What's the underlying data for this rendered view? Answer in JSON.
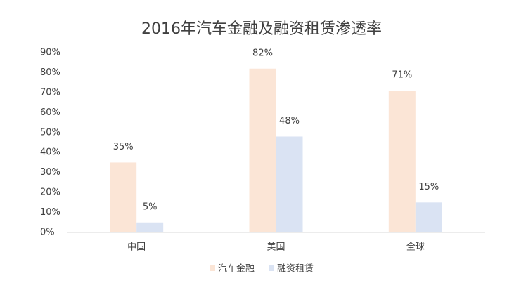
{
  "chart_data": {
    "type": "bar",
    "title": "2016年汽车金融及融资租赁渗透率",
    "categories": [
      "中国",
      "美国",
      "全球"
    ],
    "series": [
      {
        "name": "汽车金融",
        "color": "#fbe5d6",
        "values": [
          35,
          82,
          71
        ],
        "value_labels": [
          "35%",
          "82%",
          "71%"
        ]
      },
      {
        "name": "融资租赁",
        "color": "#dae3f3",
        "values": [
          5,
          48,
          15
        ],
        "value_labels": [
          "5%",
          "48%",
          "15%"
        ]
      }
    ],
    "ylim": [
      0,
      90
    ],
    "yticks": [
      {
        "value": 0,
        "label": "0%"
      },
      {
        "value": 10,
        "label": "10%"
      },
      {
        "value": 20,
        "label": "20%"
      },
      {
        "value": 30,
        "label": "30%"
      },
      {
        "value": 40,
        "label": "40%"
      },
      {
        "value": 50,
        "label": "50%"
      },
      {
        "value": 60,
        "label": "60%"
      },
      {
        "value": 70,
        "label": "70%"
      },
      {
        "value": 80,
        "label": "80%"
      },
      {
        "value": 90,
        "label": "90%"
      }
    ],
    "grid": false,
    "legend": "bottom"
  }
}
